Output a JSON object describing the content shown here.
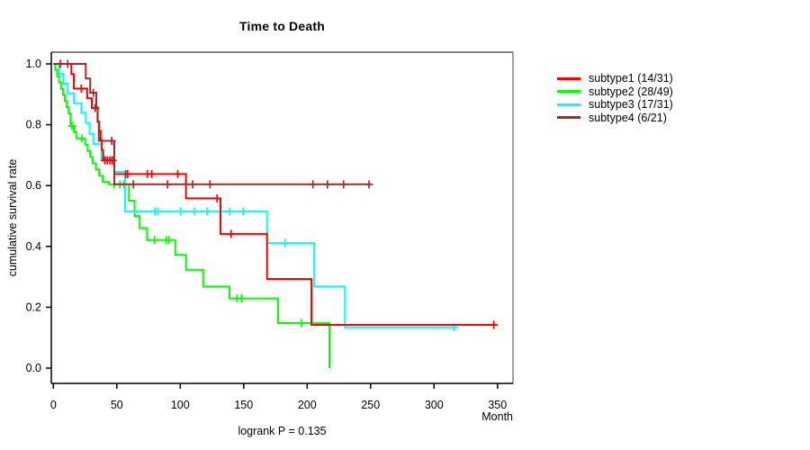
{
  "chart_data": {
    "type": "km_step",
    "title": "Time to Death",
    "xlabel": "Month",
    "ylabel": "cumulative survival rate",
    "annotation": "logrank P = 0.135",
    "xlim": [
      0,
      350
    ],
    "ylim": [
      0.0,
      1.0
    ],
    "grid": false,
    "legend_position": "right-outside",
    "x_ticks": [
      {
        "label": "0",
        "value": 0
      },
      {
        "label": "50",
        "value": 50
      },
      {
        "label": "100",
        "value": 100
      },
      {
        "label": "150",
        "value": 150
      },
      {
        "label": "200",
        "value": 200
      },
      {
        "label": "250",
        "value": 250
      },
      {
        "label": "300",
        "value": 300
      },
      {
        "label": "350",
        "value": 350
      }
    ],
    "y_ticks": [
      {
        "label": "0.0",
        "value": 0.0
      },
      {
        "label": "0.2",
        "value": 0.2
      },
      {
        "label": "0.4",
        "value": 0.4
      },
      {
        "label": "0.6",
        "value": 0.6
      },
      {
        "label": "0.8",
        "value": 0.8
      },
      {
        "label": "1.0",
        "value": 1.0
      }
    ],
    "series": [
      {
        "name": "subtype1 (14/31)",
        "color": "#ff0000",
        "events": 14,
        "n": 31,
        "end_month": 349,
        "steps": [
          [
            0,
            1.0
          ],
          [
            14.2,
            0.967
          ],
          [
            16,
            0.919
          ],
          [
            26.7,
            0.887
          ],
          [
            30.3,
            0.855
          ],
          [
            35,
            0.81
          ],
          [
            36.2,
            0.78
          ],
          [
            37.2,
            0.75
          ],
          [
            38.2,
            0.717
          ],
          [
            39.2,
            0.683
          ],
          [
            48,
            0.638
          ],
          [
            104.5,
            0.558
          ],
          [
            131.7,
            0.441
          ],
          [
            168.4,
            0.293
          ],
          [
            203.3,
            0.142
          ]
        ],
        "censors": [
          [
            5.5,
            1.0
          ],
          [
            22,
            0.919
          ],
          [
            33,
            0.855
          ],
          [
            40.5,
            0.683
          ],
          [
            42.5,
            0.683
          ],
          [
            44.5,
            0.683
          ],
          [
            46.5,
            0.683
          ],
          [
            57,
            0.638
          ],
          [
            58.5,
            0.638
          ],
          [
            74,
            0.638
          ],
          [
            77.5,
            0.638
          ],
          [
            98,
            0.638
          ],
          [
            129,
            0.558
          ],
          [
            140,
            0.441
          ],
          [
            347,
            0.142
          ]
        ]
      },
      {
        "name": "subtype2 (28/49)",
        "color": "#00ff00",
        "events": 28,
        "n": 49,
        "end_month": 217.5,
        "steps": [
          [
            0,
            1.0
          ],
          [
            1.5,
            0.98
          ],
          [
            3,
            0.959
          ],
          [
            4.5,
            0.939
          ],
          [
            6,
            0.918
          ],
          [
            7.5,
            0.898
          ],
          [
            9,
            0.878
          ],
          [
            10.5,
            0.857
          ],
          [
            12,
            0.837
          ],
          [
            13.5,
            0.796
          ],
          [
            16,
            0.776
          ],
          [
            18,
            0.755
          ],
          [
            25,
            0.735
          ],
          [
            27,
            0.714
          ],
          [
            29,
            0.694
          ],
          [
            31,
            0.673
          ],
          [
            33.5,
            0.653
          ],
          [
            36,
            0.632
          ],
          [
            38.8,
            0.612
          ],
          [
            43.8,
            0.604
          ],
          [
            59.6,
            0.55
          ],
          [
            64,
            0.5
          ],
          [
            68,
            0.46
          ],
          [
            73.8,
            0.421
          ],
          [
            96,
            0.372
          ],
          [
            104.5,
            0.323
          ],
          [
            118,
            0.268
          ],
          [
            138.8,
            0.229
          ],
          [
            177,
            0.148
          ],
          [
            217.5,
            0.0
          ]
        ],
        "censors": [
          [
            14.7,
            0.796
          ],
          [
            22.5,
            0.755
          ],
          [
            48,
            0.604
          ],
          [
            52.5,
            0.604
          ],
          [
            55.5,
            0.604
          ],
          [
            79.7,
            0.421
          ],
          [
            89,
            0.421
          ],
          [
            91,
            0.421
          ],
          [
            144.7,
            0.229
          ],
          [
            148.2,
            0.229
          ],
          [
            195.5,
            0.148
          ]
        ]
      },
      {
        "name": "subtype3 (17/31)",
        "color": "#00ffff",
        "events": 17,
        "n": 31,
        "end_month": 317,
        "steps": [
          [
            0,
            1.0
          ],
          [
            4.3,
            0.968
          ],
          [
            7.8,
            0.935
          ],
          [
            11.3,
            0.903
          ],
          [
            16,
            0.871
          ],
          [
            22,
            0.839
          ],
          [
            25.5,
            0.806
          ],
          [
            28.5,
            0.77
          ],
          [
            31.5,
            0.737
          ],
          [
            37.9,
            0.69
          ],
          [
            48,
            0.645
          ],
          [
            56.5,
            0.515
          ],
          [
            168.4,
            0.411
          ],
          [
            205.5,
            0.268
          ],
          [
            229.8,
            0.134
          ]
        ],
        "censors": [
          [
            80,
            0.515
          ],
          [
            82.5,
            0.515
          ],
          [
            100,
            0.515
          ],
          [
            111,
            0.515
          ],
          [
            121,
            0.515
          ],
          [
            139,
            0.515
          ],
          [
            149.5,
            0.515
          ],
          [
            182.6,
            0.411
          ],
          [
            315.6,
            0.134
          ]
        ]
      },
      {
        "name": "subtype4 (6/21)",
        "color": "#a52a2a",
        "events": 6,
        "n": 21,
        "end_month": 250,
        "steps": [
          [
            0,
            1.0
          ],
          [
            25.5,
            0.952
          ],
          [
            29,
            0.905
          ],
          [
            33.8,
            0.857
          ],
          [
            34.8,
            0.81
          ],
          [
            35.8,
            0.747
          ],
          [
            48,
            0.604
          ]
        ],
        "censors": [
          [
            11.3,
            1.0
          ],
          [
            31.5,
            0.905
          ],
          [
            46,
            0.747
          ],
          [
            63,
            0.604
          ],
          [
            90,
            0.604
          ],
          [
            109.7,
            0.604
          ],
          [
            123.4,
            0.604
          ],
          [
            204.5,
            0.604
          ],
          [
            216,
            0.604
          ],
          [
            228.7,
            0.604
          ],
          [
            248.7,
            0.604
          ]
        ]
      }
    ]
  }
}
